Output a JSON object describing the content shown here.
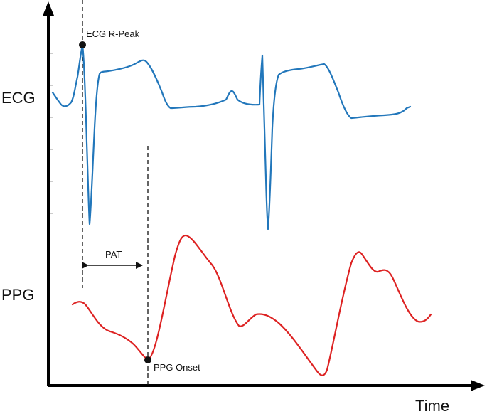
{
  "labels": {
    "ecg": "ECG",
    "ppg": "PPG",
    "time": "Time",
    "r_peak": "ECG R-Peak",
    "ppg_onset": "PPG Onset",
    "pat": "PAT"
  },
  "colors": {
    "ecg": "#2277bb",
    "ppg": "#dd2222",
    "axis": "#000000",
    "text": "#111111"
  }
}
